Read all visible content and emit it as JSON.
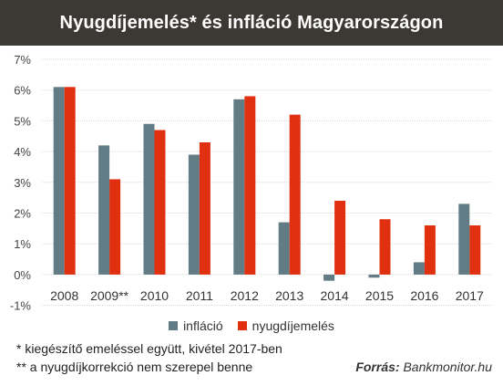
{
  "title": "Nyugdíjemelés* és infláció Magyarországon",
  "chart_data": {
    "type": "bar",
    "categories": [
      "2008",
      "2009**",
      "2010",
      "2011",
      "2012",
      "2013",
      "2014",
      "2015",
      "2016",
      "2017"
    ],
    "series": [
      {
        "name": "infláció",
        "color": "#627c85",
        "values": [
          6.1,
          4.2,
          4.9,
          3.9,
          5.7,
          1.7,
          -0.2,
          -0.1,
          0.4,
          2.3
        ]
      },
      {
        "name": "nyugdíjemelés",
        "color": "#e03010",
        "values": [
          6.1,
          3.1,
          4.7,
          4.3,
          5.8,
          5.2,
          2.4,
          1.8,
          1.6,
          1.6
        ]
      }
    ],
    "ylim": [
      -1,
      7
    ],
    "yticks": [
      "-1%",
      "0%",
      "1%",
      "2%",
      "3%",
      "4%",
      "5%",
      "6%",
      "7%"
    ],
    "grid": true,
    "legend": "bottom"
  },
  "notes": [
    "* kiegészítő emeléssel együtt, kivétel 2017-ben",
    "** a nyugdíjkorrekció nem szerepel benne"
  ],
  "source": {
    "label": "Forrás",
    "name": "Bankmonitor.hu"
  }
}
